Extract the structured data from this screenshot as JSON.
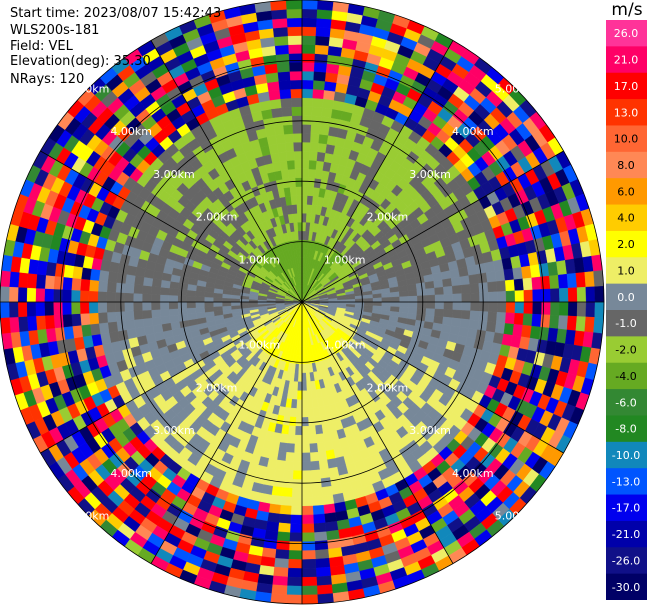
{
  "header": {
    "start_time": "Start time: 2023/08/07 15:42:43",
    "instrument": "WLS200s-181",
    "field": "Field: VEL",
    "elevation": "Elevation(deg): 35.30",
    "nrays": "NRays: 120"
  },
  "colorbar": {
    "unit": "m/s",
    "ticks": [
      "26.0",
      "21.0",
      "17.0",
      "13.0",
      "10.0",
      "8.0",
      "6.0",
      "4.0",
      "2.0",
      "1.0",
      "0.0",
      "-1.0",
      "-2.0",
      "-4.0",
      "-6.0",
      "-8.0",
      "-10.0",
      "-13.0",
      "-17.0",
      "-21.0",
      "-26.0",
      "-30.0"
    ],
    "colors": [
      "#ff3399",
      "#ff0066",
      "#ff0000",
      "#ff3300",
      "#ff6633",
      "#ff8855",
      "#ff9900",
      "#ffcc00",
      "#ffff00",
      "#eeee66",
      "#778899",
      "#666666",
      "#99cc33",
      "#66aa22",
      "#338833",
      "#228822",
      "#1188bb",
      "#0055ff",
      "#0000ee",
      "#0000aa",
      "#101088",
      "#000066"
    ]
  },
  "chart_data": {
    "type": "ppi",
    "field": "VEL",
    "unit": "m/s",
    "nrays": 120,
    "elevation_deg": 35.3,
    "range_rings_km": [
      1.0,
      2.0,
      3.0,
      4.0,
      5.0
    ],
    "ring_labels": {
      "r1": "1.00km",
      "r2": "2.00km",
      "r3": "3.00km",
      "r4": "4.00km",
      "r5": "5.00km"
    },
    "color_scale": {
      "min": -30.0,
      "max": 26.0
    },
    "grid": true
  }
}
